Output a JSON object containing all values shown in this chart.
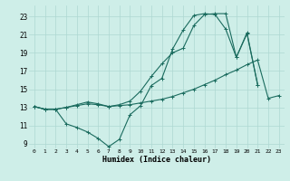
{
  "xlabel": "Humidex (Indice chaleur)",
  "background_color": "#ceeee8",
  "grid_color": "#aed8d2",
  "line_color": "#1a6b5e",
  "xlim": [
    -0.5,
    23.5
  ],
  "ylim": [
    8.5,
    24.2
  ],
  "xticks": [
    0,
    1,
    2,
    3,
    4,
    5,
    6,
    7,
    8,
    9,
    10,
    11,
    12,
    13,
    14,
    15,
    16,
    17,
    18,
    19,
    20,
    21,
    22,
    23
  ],
  "yticks": [
    9,
    11,
    13,
    15,
    17,
    19,
    21,
    23
  ],
  "series1_y": [
    13.1,
    12.8,
    12.8,
    11.2,
    10.8,
    10.3,
    9.6,
    8.7,
    9.5,
    12.2,
    13.2,
    15.4,
    16.2,
    19.4,
    21.5,
    23.1,
    23.3,
    23.2,
    21.6,
    18.5,
    21.1,
    15.5,
    null,
    null
  ],
  "series2_y": [
    13.1,
    12.8,
    12.8,
    13.0,
    13.2,
    13.4,
    13.3,
    13.1,
    13.2,
    13.3,
    13.5,
    13.7,
    13.9,
    14.2,
    14.6,
    15.0,
    15.5,
    16.0,
    16.6,
    17.1,
    17.7,
    18.2,
    14.0,
    14.3
  ],
  "series3_y": [
    13.1,
    12.8,
    12.8,
    13.0,
    13.3,
    13.6,
    13.4,
    13.1,
    13.3,
    13.7,
    14.8,
    16.4,
    17.8,
    19.0,
    19.5,
    22.0,
    23.2,
    23.3,
    23.3,
    18.5,
    21.2,
    15.5,
    null,
    null
  ]
}
